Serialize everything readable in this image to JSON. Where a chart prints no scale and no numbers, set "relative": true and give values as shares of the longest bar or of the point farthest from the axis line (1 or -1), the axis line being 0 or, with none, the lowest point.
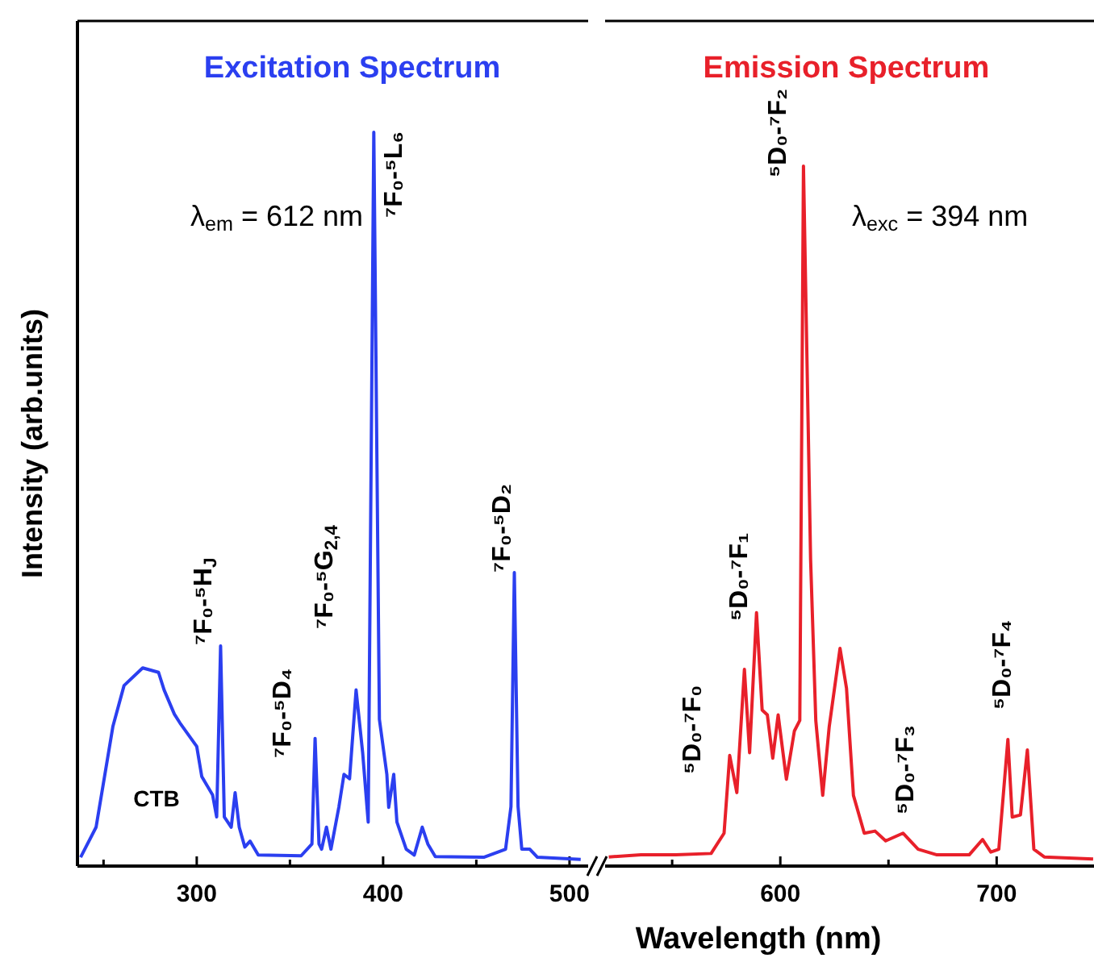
{
  "chart_data": [
    {
      "type": "line",
      "title": "Excitation Spectrum",
      "ylabel": "Intensity (arb.units)",
      "xlabel": "Wavelength (nm)",
      "relative": true,
      "xlim": [
        236,
        510
      ],
      "xticks": [
        {
          "value": 250,
          "label": null
        },
        300,
        {
          "value": 350,
          "label": null
        },
        400,
        {
          "value": 450,
          "label": null
        },
        500
      ],
      "series": [
        {
          "color": "#2b3ff0",
          "x": [
            237.7,
            246,
            255,
            261,
            271,
            279.5,
            282.5,
            288,
            291,
            300,
            302.7,
            308.5,
            310.7,
            312.8,
            314.8,
            318.5,
            320.6,
            322.8,
            325.8,
            328.6,
            333,
            356,
            361.8,
            363.5,
            365.6,
            367,
            369.6,
            372,
            376.3,
            379,
            382,
            385.5,
            389,
            392,
            395,
            398,
            402,
            403,
            405.7,
            407.4,
            412.4,
            416.7,
            421,
            424,
            428,
            454,
            465.7,
            468.6,
            470.4,
            472.4,
            474.4,
            478.7,
            482.8,
            506
          ],
          "values": [
            0.012,
            0.053,
            0.19,
            0.246,
            0.27,
            0.264,
            0.24,
            0.207,
            0.195,
            0.163,
            0.122,
            0.097,
            0.067,
            0.3,
            0.067,
            0.053,
            0.1,
            0.053,
            0.026,
            0.034,
            0.015,
            0.014,
            0.03,
            0.174,
            0.03,
            0.023,
            0.053,
            0.023,
            0.081,
            0.125,
            0.119,
            0.24,
            0.155,
            0.06,
            1,
            0.2,
            0.125,
            0.08,
            0.125,
            0.06,
            0.023,
            0.015,
            0.053,
            0.03,
            0.013,
            0.012,
            0.023,
            0.081,
            0.4,
            0.081,
            0.023,
            0.023,
            0.012,
            0.009
          ]
        }
      ],
      "annotations": [
        "λ$_{em}$ = 612 nm",
        "CTB",
        "⁷F₀-⁵H$_{J}$",
        "⁷F₀-⁵D₄",
        "⁷F₀-⁵G$_{2,4}$",
        "⁷F₀-⁵L₆",
        "⁷F₀-⁵D₂"
      ]
    },
    {
      "type": "line",
      "title": "Emission Spectrum",
      "relative": true,
      "xlim": [
        519,
        745
      ],
      "xticks": [
        {
          "value": 550,
          "label": null
        },
        600,
        {
          "value": 650,
          "label": null
        },
        700
      ],
      "series": [
        {
          "color": "#e8202a",
          "x": [
            520.7,
            535.6,
            551.7,
            568,
            574,
            576.6,
            579.9,
            583.4,
            585.8,
            589,
            591.6,
            594,
            596.5,
            599,
            602.8,
            606.5,
            609,
            610.7,
            614,
            616.4,
            619.6,
            622.6,
            627.6,
            630.6,
            633.8,
            638.8,
            643.8,
            648.7,
            656.7,
            663.7,
            672.4,
            687.3,
            693.5,
            697.3,
            701,
            705.2,
            707.2,
            711,
            714.2,
            717.2,
            722,
            744.6
          ],
          "values": [
            0.013,
            0.016,
            0.016,
            0.018,
            0.047,
            0.158,
            0.105,
            0.281,
            0.162,
            0.362,
            0.223,
            0.216,
            0.154,
            0.216,
            0.124,
            0.193,
            0.208,
            1,
            0.438,
            0.208,
            0.101,
            0.199,
            0.311,
            0.254,
            0.101,
            0.047,
            0.05,
            0.036,
            0.047,
            0.024,
            0.016,
            0.016,
            0.038,
            0.02,
            0.024,
            0.181,
            0.07,
            0.073,
            0.166,
            0.024,
            0.013,
            0.01
          ]
        }
      ],
      "annotations": [
        "λ$_{exc}$ = 394 nm",
        "⁵D₀-⁷F₀",
        "⁵D₀-⁷F₁",
        "⁵D₀-⁷F₂",
        "⁵D₀-⁷F₃",
        "⁵D₀-⁷F₄"
      ]
    }
  ]
}
